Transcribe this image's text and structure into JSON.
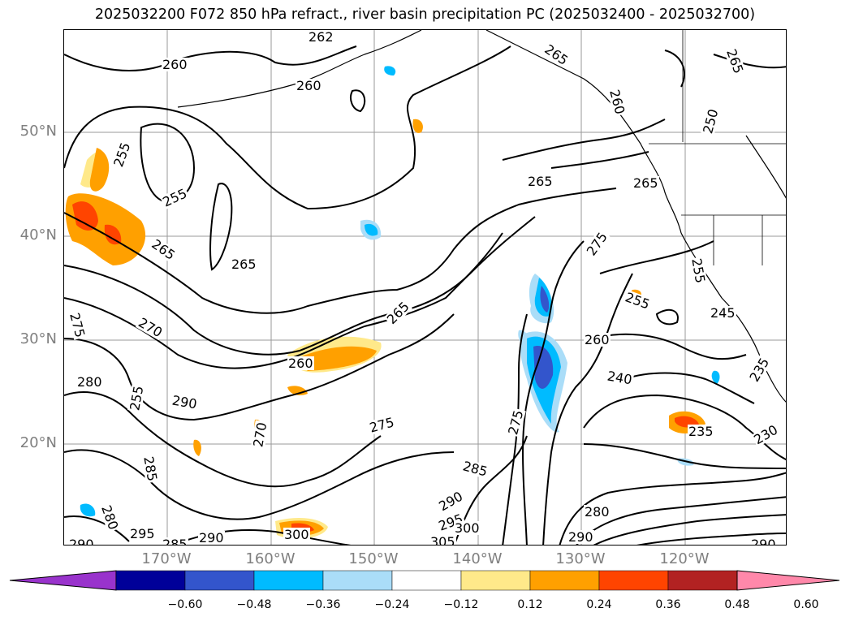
{
  "title": "2025032200 F072 850 hPa refract., river basin precipitation PC (2025032400 - 2025032700)",
  "lat_labels": [
    "50°N",
    "40°N",
    "30°N",
    "20°N"
  ],
  "lon_labels": [
    "170°W",
    "160°W",
    "150°W",
    "140°W",
    "130°W",
    "120°W"
  ],
  "colorbar": {
    "colors": [
      "#9933cc",
      "#000099",
      "#3355cc",
      "#00bbff",
      "#aaddf8",
      "#ffffff",
      "#ffe98a",
      "#ffa000",
      "#ff4400",
      "#b22222",
      "#ff88aa"
    ],
    "tick_labels": [
      "−0.60",
      "−0.48",
      "−0.36",
      "−0.24",
      "−0.12",
      "0.12",
      "0.24",
      "0.36",
      "0.48",
      "0.60"
    ]
  },
  "contour_labels": [
    "260",
    "260",
    "262",
    "265",
    "265",
    "265",
    "260",
    "255",
    "255",
    "250",
    "265",
    "270",
    "275",
    "265",
    "265",
    "260",
    "265",
    "275",
    "260",
    "255",
    "255",
    "245",
    "280",
    "270",
    "290",
    "255",
    "240",
    "235",
    "230",
    "235",
    "275",
    "275",
    "285",
    "285",
    "280",
    "290",
    "295",
    "295",
    "300",
    "300",
    "290",
    "305",
    "290",
    "280",
    "290",
    "290",
    "285"
  ]
}
